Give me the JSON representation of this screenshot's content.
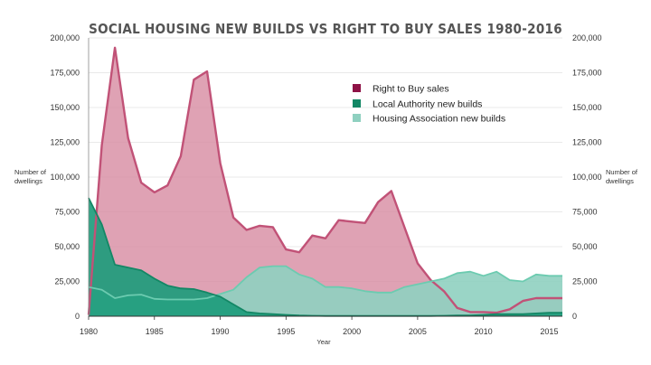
{
  "chart_data": {
    "type": "area",
    "title": "SOCIAL HOUSING NEW BUILDS VS RIGHT TO BUY SALES 1980-2016",
    "xlabel": "Year",
    "ylabel_left": [
      "Number of",
      "dwellings"
    ],
    "ylabel_right": [
      "Number of",
      "dwellings"
    ],
    "ylim": [
      0,
      200000
    ],
    "xlim": [
      1980,
      2016
    ],
    "y_ticks": [
      {
        "value": 0,
        "label": "0"
      },
      {
        "value": 25000,
        "label": "25,000"
      },
      {
        "value": 50000,
        "label": "50,000"
      },
      {
        "value": 75000,
        "label": "75,000"
      },
      {
        "value": 100000,
        "label": "100,000"
      },
      {
        "value": 125000,
        "label": "125,000"
      },
      {
        "value": 150000,
        "label": "150,000"
      },
      {
        "value": 175000,
        "label": "175,000"
      },
      {
        "value": 200000,
        "label": "200,000"
      }
    ],
    "x_ticks": [
      {
        "value": 1980,
        "label": "1980"
      },
      {
        "value": 1985,
        "label": "1985"
      },
      {
        "value": 1990,
        "label": "1990"
      },
      {
        "value": 1995,
        "label": "1995"
      },
      {
        "value": 2000,
        "label": "2000"
      },
      {
        "value": 2005,
        "label": "2005"
      },
      {
        "value": 2010,
        "label": "2010"
      },
      {
        "value": 2015,
        "label": "2015"
      }
    ],
    "legend_position": "top-right",
    "x": [
      1980,
      1981,
      1982,
      1983,
      1984,
      1985,
      1986,
      1987,
      1988,
      1989,
      1990,
      1991,
      1992,
      1993,
      1994,
      1995,
      1996,
      1997,
      1998,
      1999,
      2000,
      2001,
      2002,
      2003,
      2004,
      2005,
      2006,
      2007,
      2008,
      2009,
      2010,
      2011,
      2012,
      2013,
      2014,
      2015,
      2016
    ],
    "series": [
      {
        "name": "Right to Buy sales",
        "fill": "#d88ea4",
        "stroke": "#c15277",
        "marker": "#8e1246",
        "values": [
          1000,
          123000,
          193000,
          128000,
          96000,
          89000,
          94000,
          115000,
          170000,
          176000,
          110000,
          71000,
          62000,
          65000,
          64000,
          48000,
          46000,
          58000,
          56000,
          69000,
          68000,
          67000,
          82000,
          90000,
          64000,
          38000,
          26000,
          18000,
          6000,
          3000,
          3000,
          2500,
          5000,
          11000,
          13000,
          13000,
          13000
        ]
      },
      {
        "name": "Local Authority new builds",
        "fill": "#1b9b7a",
        "stroke": "#138765",
        "marker": "#138765",
        "values": [
          85000,
          66000,
          37000,
          35000,
          33000,
          27000,
          22000,
          20000,
          19500,
          17000,
          14000,
          8500,
          3000,
          2000,
          1500,
          1000,
          500,
          300,
          200,
          200,
          200,
          200,
          200,
          200,
          200,
          200,
          200,
          300,
          500,
          500,
          1000,
          1500,
          1500,
          1500,
          2000,
          2500,
          2500
        ]
      },
      {
        "name": "Housing Association new builds",
        "fill": "#8fd0c0",
        "stroke": "#6ccbb0",
        "marker": "#8fd0c0",
        "values": [
          21000,
          19000,
          13000,
          15000,
          15500,
          12500,
          12000,
          12000,
          12000,
          13000,
          16000,
          19000,
          28000,
          35000,
          36000,
          36000,
          30000,
          27000,
          21000,
          21000,
          20000,
          18000,
          17000,
          17000,
          21000,
          23000,
          25000,
          27000,
          31000,
          32000,
          29000,
          32000,
          26000,
          25000,
          30000,
          29000,
          29000
        ]
      }
    ]
  }
}
